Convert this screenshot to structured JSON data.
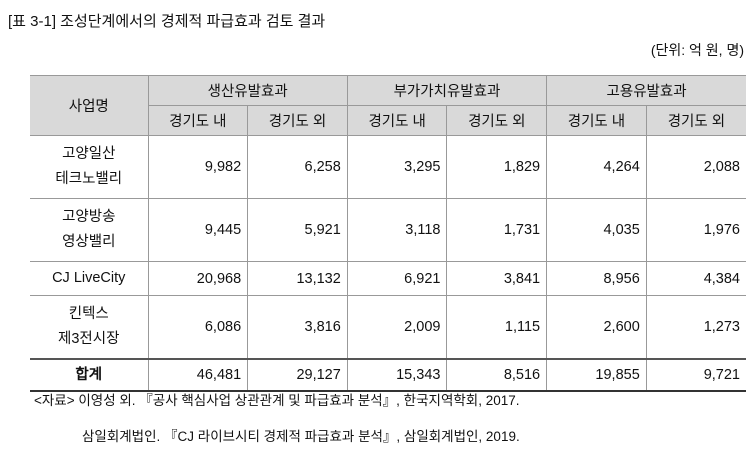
{
  "title": "[표 3-1] 조성단계에서의 경제적 파급효과 검토 결과",
  "unit": "(단위: 억 원, 명)",
  "table": {
    "corner": "사업명",
    "groups": [
      "생산유발효과",
      "부가가치유발효과",
      "고용유발효과"
    ],
    "subheaders": [
      "경기도 내",
      "경기도 외",
      "경기도 내",
      "경기도 외",
      "경기도 내",
      "경기도 외"
    ],
    "rows": [
      {
        "name": [
          "고양일산",
          "테크노밸리"
        ],
        "values": [
          "9,982",
          "6,258",
          "3,295",
          "1,829",
          "4,264",
          "2,088"
        ]
      },
      {
        "name": [
          "고양방송",
          "영상밸리"
        ],
        "values": [
          "9,445",
          "5,921",
          "3,118",
          "1,731",
          "4,035",
          "1,976"
        ]
      },
      {
        "name": [
          "CJ LiveCity"
        ],
        "values": [
          "20,968",
          "13,132",
          "6,921",
          "3,841",
          "8,956",
          "4,384"
        ]
      },
      {
        "name": [
          "킨텍스",
          "제3전시장"
        ],
        "values": [
          "6,086",
          "3,816",
          "2,009",
          "1,115",
          "2,600",
          "1,273"
        ]
      }
    ],
    "total": {
      "name": "합계",
      "values": [
        "46,481",
        "29,127",
        "15,343",
        "8,516",
        "19,855",
        "9,721"
      ]
    }
  },
  "notes": [
    "<자료> 이영성 외. 『공사 핵심사업 상관관계 및 파급효과 분석』, 한국지역학회, 2017.",
    "삼일회계법인. 『CJ 라이브시티 경제적 파급효과 분석』, 삼일회계법인, 2019."
  ]
}
